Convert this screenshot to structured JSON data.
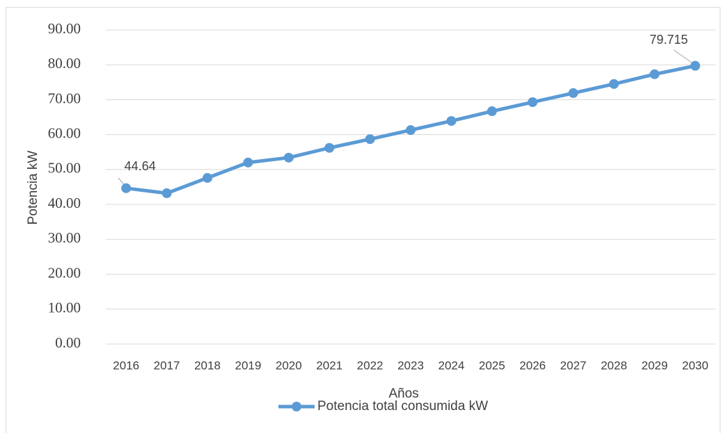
{
  "chart_data": {
    "type": "line",
    "x_label": "Años",
    "y_label": "Potencia kW",
    "categories": [
      "2016",
      "2017",
      "2018",
      "2019",
      "2020",
      "2021",
      "2022",
      "2023",
      "2024",
      "2025",
      "2026",
      "2027",
      "2028",
      "2029",
      "2030"
    ],
    "series": [
      {
        "name": "Potencia total consumida kW",
        "color": "#5b9bd5",
        "values": [
          44.64,
          43.2,
          47.6,
          52.0,
          53.4,
          56.2,
          58.7,
          61.3,
          63.9,
          66.7,
          69.3,
          71.9,
          74.5,
          77.3,
          79.715
        ]
      }
    ],
    "ylim": [
      0,
      90
    ],
    "yticks": [
      {
        "value": 0,
        "label": "0.00"
      },
      {
        "value": 10,
        "label": "10.00"
      },
      {
        "value": 20,
        "label": "20.00"
      },
      {
        "value": 30,
        "label": "30.00"
      },
      {
        "value": 40,
        "label": "40.00"
      },
      {
        "value": 50,
        "label": "50.00"
      },
      {
        "value": 60,
        "label": "60.00"
      },
      {
        "value": 70,
        "label": "70.00"
      },
      {
        "value": 80,
        "label": "80.00"
      },
      {
        "value": 90,
        "label": "90.00"
      }
    ],
    "grid": true,
    "legend": "bottom"
  }
}
